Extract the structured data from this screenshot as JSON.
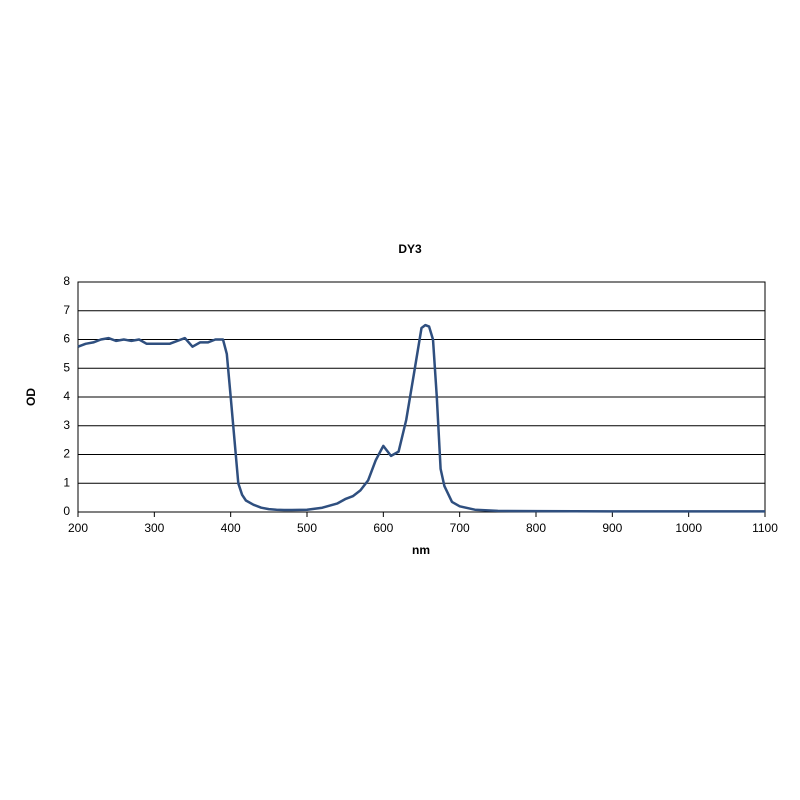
{
  "chart_data": {
    "type": "line",
    "title": "DY3",
    "x_label": "nm",
    "y_label": "OD",
    "x": [
      200,
      210,
      220,
      230,
      240,
      250,
      260,
      270,
      280,
      290,
      300,
      310,
      320,
      330,
      340,
      350,
      360,
      370,
      380,
      390,
      395,
      400,
      405,
      410,
      415,
      420,
      430,
      440,
      450,
      460,
      470,
      480,
      500,
      520,
      540,
      550,
      560,
      570,
      580,
      590,
      600,
      610,
      620,
      630,
      640,
      650,
      655,
      660,
      665,
      670,
      675,
      680,
      690,
      700,
      720,
      750,
      800,
      900,
      1000,
      1100
    ],
    "series": [
      {
        "name": "DY3",
        "color": "#2f4f7f",
        "values": [
          5.75,
          5.85,
          5.9,
          6.0,
          6.05,
          5.95,
          6.0,
          5.95,
          6.0,
          5.85,
          5.85,
          5.85,
          5.85,
          5.95,
          6.05,
          5.75,
          5.9,
          5.9,
          6.0,
          6.0,
          5.5,
          4.0,
          2.5,
          1.0,
          0.6,
          0.4,
          0.25,
          0.15,
          0.1,
          0.08,
          0.07,
          0.07,
          0.08,
          0.15,
          0.3,
          0.45,
          0.55,
          0.75,
          1.1,
          1.8,
          2.3,
          1.95,
          2.1,
          3.2,
          4.8,
          6.4,
          6.5,
          6.45,
          6.0,
          4.0,
          1.5,
          0.9,
          0.35,
          0.2,
          0.08,
          0.04,
          0.03,
          0.02,
          0.02,
          0.02
        ]
      }
    ],
    "xlim": [
      200,
      1100
    ],
    "xticks": [
      200,
      300,
      400,
      500,
      600,
      700,
      800,
      900,
      1000,
      1100
    ],
    "ylim": [
      0,
      8
    ],
    "yticks": [
      0,
      1,
      2,
      3,
      4,
      5,
      6,
      7,
      8
    ],
    "grid": true
  }
}
